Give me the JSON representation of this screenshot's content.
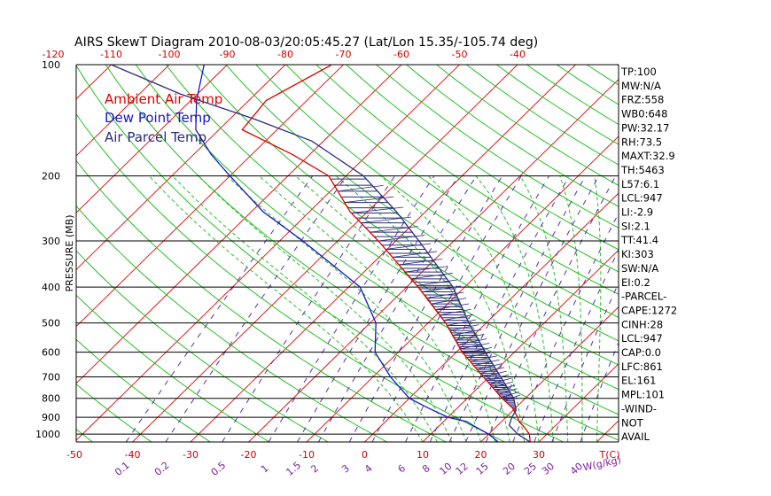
{
  "chart_data": {
    "type": "line",
    "title": "AIRS SkewT Diagram 2010-08-03/20:05:45.27 (Lat/Lon 15.35/-105.74 deg)",
    "ylabel": "PRESSURE (MB)",
    "y_scale": "log",
    "ylim": [
      1050,
      100
    ],
    "xlim": [
      -51,
      43
    ],
    "skew": "isotherms skewed right with height",
    "grid": true,
    "legend_position": "top-left",
    "pressure_ticks": [
      100,
      200,
      300,
      400,
      500,
      600,
      700,
      800,
      900,
      1000
    ],
    "top_temp_ticks": [
      -120,
      -110,
      -100,
      -90,
      -80,
      -70,
      -60,
      -50,
      -40
    ],
    "bottom_temp_ticks": [
      -50,
      -40,
      -30,
      -20,
      -10,
      0,
      10,
      20,
      30
    ],
    "bottom_temp_unit": "T(C)",
    "mixing_ratio_labels": [
      "0.1",
      "0.2",
      "0.5",
      "1",
      "1.5",
      "2",
      "3",
      "4",
      "6",
      "8",
      "10",
      "12",
      "15",
      "20",
      "25",
      "30",
      "40"
    ],
    "mixing_ratio_unit": "W(g/kg)",
    "colors": {
      "isotherm": "#e31a1c",
      "dry_adiabat": "#22c022",
      "moist_adiabat": "#22c022",
      "mixing_ratio": "#5a2fa8",
      "temp": "#e00000",
      "dewpoint": "#1616c8",
      "parcel": "#2a2a7a",
      "isobar": "#000000",
      "axis_text": "#d00000",
      "mixing_text": "#7a1fa0"
    },
    "series": [
      {
        "name": "Ambient Air Temp",
        "p": [
          1050,
          1000,
          950,
          925,
          900,
          850,
          800,
          700,
          600,
          500,
          400,
          300,
          250,
          200,
          175,
          150,
          125,
          100
        ],
        "t": [
          28.5,
          27.0,
          24.5,
          23.0,
          22.0,
          19.5,
          16.0,
          9.0,
          1.0,
          -7.0,
          -18.0,
          -33.0,
          -43.0,
          -53.0,
          -63.0,
          -76.0,
          -77.0,
          -72.0
        ]
      },
      {
        "name": "Dew Point Temp",
        "p": [
          1050,
          1000,
          950,
          925,
          900,
          850,
          800,
          700,
          600,
          500,
          400,
          300,
          250,
          200,
          175,
          150,
          125,
          100
        ],
        "t": [
          23.0,
          20.0,
          16.0,
          14.0,
          10.0,
          5.0,
          0.0,
          -7.0,
          -14.0,
          -19.0,
          -28.0,
          -46.0,
          -58.0,
          -70.0,
          -77.0,
          -84.0,
          -89.0,
          -94.0
        ]
      },
      {
        "name": "Air Parcel Temp",
        "p": [
          1050,
          1000,
          947,
          900,
          861,
          800,
          700,
          600,
          500,
          400,
          300,
          250,
          200,
          161,
          140,
          120,
          100
        ],
        "t": [
          28.5,
          25.0,
          22.0,
          21.0,
          20.5,
          18.0,
          12.0,
          5.0,
          -3.0,
          -12.0,
          -26.0,
          -35.0,
          -47.0,
          -62.0,
          -76.0,
          -93.0,
          -110.0
        ]
      }
    ],
    "legend": [
      {
        "label": "Ambient Air Temp",
        "color": "#e00000"
      },
      {
        "label": "Dew Point Temp",
        "color": "#1616c8"
      },
      {
        "label": "Air Parcel Temp",
        "color": "#2a2a7a"
      }
    ],
    "indices": [
      "TP:100",
      "MW:N/A",
      "FRZ:558",
      "WB0:648",
      "PW:32.17",
      "RH:73.5",
      "MAXT:32.9",
      "TH:5463",
      "L57:6.1",
      "LCL:947",
      "LI:-2.9",
      "SI:2.1",
      "TT:41.4",
      "KI:303",
      "SW:N/A",
      "EI:0.2",
      "-PARCEL-",
      "CAPE:1272",
      "CINH:28",
      "LCL:947",
      "CAP:0.0",
      "LFC:861",
      "EL:161",
      "MPL:101",
      "-WIND-",
      "NOT",
      "AVAIL"
    ]
  }
}
